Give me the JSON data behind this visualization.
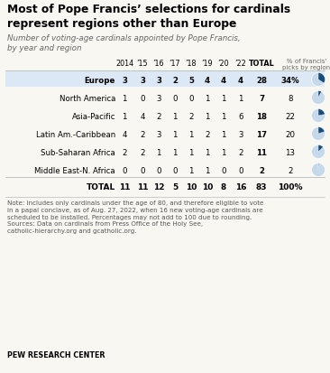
{
  "title": "Most of Pope Francis’ selections for cardinals\nrepresent regions other than Europe",
  "subtitle": "Number of voting-age cardinals appointed by Pope Francis,\nby year and region",
  "col_headers": [
    "2014",
    "’15",
    "’16",
    "’17",
    "’18",
    "’19",
    "’20",
    "’22",
    "TOTAL"
  ],
  "col_header_extra": "% of Francis’\npicks by region",
  "rows": [
    {
      "region": "Europe",
      "values": [
        3,
        3,
        3,
        2,
        5,
        4,
        4,
        4,
        28
      ],
      "pct": 34,
      "pct_str": "34%",
      "bold": true
    },
    {
      "region": "North America",
      "values": [
        1,
        0,
        3,
        0,
        0,
        1,
        1,
        1,
        7
      ],
      "pct": 8,
      "pct_str": "8",
      "bold": false
    },
    {
      "region": "Asia-Pacific",
      "values": [
        1,
        4,
        2,
        1,
        2,
        1,
        1,
        6,
        18
      ],
      "pct": 22,
      "pct_str": "22",
      "bold": false
    },
    {
      "region": "Latin Am.-Caribbean",
      "values": [
        4,
        2,
        3,
        1,
        1,
        2,
        1,
        3,
        17
      ],
      "pct": 20,
      "pct_str": "20",
      "bold": false
    },
    {
      "region": "Sub-Saharan Africa",
      "values": [
        2,
        2,
        1,
        1,
        1,
        1,
        1,
        2,
        11
      ],
      "pct": 13,
      "pct_str": "13",
      "bold": false
    },
    {
      "region": "Middle East-N. Africa",
      "values": [
        0,
        0,
        0,
        0,
        1,
        1,
        0,
        0,
        2
      ],
      "pct": 2,
      "pct_str": "2",
      "bold": false
    }
  ],
  "total_row": {
    "label": "TOTAL",
    "values": [
      11,
      11,
      12,
      5,
      10,
      10,
      8,
      16,
      83
    ],
    "pct_str": "100%"
  },
  "note": "Note: Includes only cardinals under the age of 80, and therefore eligible to vote\nin a papal conclave, as of Aug. 27, 2022, when 16 new voting-age cardinals are\nscheduled to be installed. Percentages may not add to 100 due to rounding.\nSources: Data on cardinals from Press Office of the Holy See,\ncatholic-hierarchy.org and gcatholic.org.",
  "footer": "PEW RESEARCH CENTER",
  "bg_color": "#f9f7f2",
  "pie_dark": "#1a4d7a",
  "pie_light": "#c5d9ea",
  "europe_row_bg": "#dce8f5"
}
